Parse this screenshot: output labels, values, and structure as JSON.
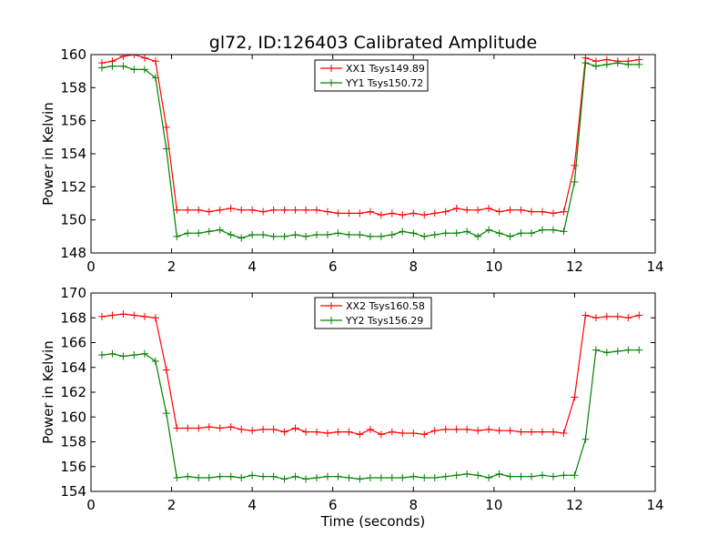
{
  "chart_data": [
    {
      "type": "line",
      "title": "gl72, ID:126403 Calibrated Amplitude",
      "xlabel": "",
      "ylabel": "Power in Kelvin",
      "xlim": [
        0,
        14
      ],
      "ylim": [
        148,
        160
      ],
      "xticks": [
        0,
        2,
        4,
        6,
        8,
        10,
        12,
        14
      ],
      "yticks": [
        148,
        150,
        152,
        154,
        156,
        158,
        160
      ],
      "grid": false,
      "legend": "top-center",
      "x": [
        0.27,
        0.53,
        0.8,
        1.07,
        1.33,
        1.6,
        1.87,
        2.13,
        2.4,
        2.67,
        2.93,
        3.2,
        3.47,
        3.73,
        4.0,
        4.27,
        4.53,
        4.8,
        5.07,
        5.33,
        5.6,
        5.87,
        6.13,
        6.4,
        6.67,
        6.93,
        7.2,
        7.47,
        7.73,
        8.0,
        8.27,
        8.53,
        8.8,
        9.07,
        9.33,
        9.6,
        9.87,
        10.13,
        10.4,
        10.67,
        10.93,
        11.2,
        11.47,
        11.73,
        12.0,
        12.27,
        12.53,
        12.8,
        13.07,
        13.33,
        13.6
      ],
      "series": [
        {
          "name": "XX1 Tsys149.89",
          "color": "#ff0000",
          "values": [
            159.5,
            159.6,
            159.9,
            160.0,
            159.8,
            159.6,
            155.6,
            150.6,
            150.6,
            150.6,
            150.5,
            150.6,
            150.7,
            150.6,
            150.6,
            150.5,
            150.6,
            150.6,
            150.6,
            150.6,
            150.6,
            150.5,
            150.4,
            150.4,
            150.4,
            150.5,
            150.3,
            150.4,
            150.3,
            150.4,
            150.3,
            150.4,
            150.5,
            150.7,
            150.6,
            150.6,
            150.7,
            150.5,
            150.6,
            150.6,
            150.5,
            150.5,
            150.4,
            150.5,
            153.3,
            159.8,
            159.6,
            159.7,
            159.6,
            159.6,
            159.7
          ]
        },
        {
          "name": "YY1 Tsys150.72",
          "color": "#008000",
          "values": [
            159.2,
            159.3,
            159.3,
            159.1,
            159.1,
            158.6,
            154.3,
            149.0,
            149.2,
            149.2,
            149.3,
            149.4,
            149.1,
            148.9,
            149.1,
            149.1,
            149.0,
            149.0,
            149.1,
            149.0,
            149.1,
            149.1,
            149.2,
            149.1,
            149.1,
            149.0,
            149.0,
            149.1,
            149.3,
            149.2,
            149.0,
            149.1,
            149.2,
            149.2,
            149.3,
            149.0,
            149.4,
            149.2,
            149.0,
            149.2,
            149.2,
            149.4,
            149.4,
            149.3,
            152.3,
            159.5,
            159.3,
            159.4,
            159.5,
            159.4,
            159.4
          ]
        }
      ]
    },
    {
      "type": "line",
      "title": "",
      "xlabel": "Time (seconds)",
      "ylabel": "Power in Kelvin",
      "xlim": [
        0,
        14
      ],
      "ylim": [
        154,
        170
      ],
      "xticks": [
        0,
        2,
        4,
        6,
        8,
        10,
        12,
        14
      ],
      "yticks": [
        154,
        156,
        158,
        160,
        162,
        164,
        166,
        168,
        170
      ],
      "grid": false,
      "legend": "top-center",
      "x": [
        0.27,
        0.53,
        0.8,
        1.07,
        1.33,
        1.6,
        1.87,
        2.13,
        2.4,
        2.67,
        2.93,
        3.2,
        3.47,
        3.73,
        4.0,
        4.27,
        4.53,
        4.8,
        5.07,
        5.33,
        5.6,
        5.87,
        6.13,
        6.4,
        6.67,
        6.93,
        7.2,
        7.47,
        7.73,
        8.0,
        8.27,
        8.53,
        8.8,
        9.07,
        9.33,
        9.6,
        9.87,
        10.13,
        10.4,
        10.67,
        10.93,
        11.2,
        11.47,
        11.73,
        12.0,
        12.27,
        12.53,
        12.8,
        13.07,
        13.33,
        13.6
      ],
      "series": [
        {
          "name": "XX2 Tsys160.58",
          "color": "#ff0000",
          "values": [
            168.1,
            168.2,
            168.3,
            168.2,
            168.1,
            168.0,
            163.8,
            159.1,
            159.1,
            159.1,
            159.2,
            159.1,
            159.2,
            159.0,
            158.9,
            159.0,
            159.0,
            158.8,
            159.1,
            158.8,
            158.8,
            158.7,
            158.8,
            158.8,
            158.6,
            159.0,
            158.6,
            158.8,
            158.7,
            158.7,
            158.6,
            158.9,
            159.0,
            159.0,
            159.0,
            158.9,
            159.0,
            158.9,
            158.9,
            158.8,
            158.8,
            158.8,
            158.8,
            158.7,
            161.6,
            168.2,
            168.0,
            168.1,
            168.1,
            168.0,
            168.2
          ]
        },
        {
          "name": "YY2 Tsys156.29",
          "color": "#008000",
          "values": [
            165.0,
            165.1,
            164.9,
            165.0,
            165.1,
            164.5,
            160.3,
            155.1,
            155.2,
            155.1,
            155.1,
            155.2,
            155.2,
            155.1,
            155.3,
            155.2,
            155.2,
            155.0,
            155.2,
            155.0,
            155.1,
            155.2,
            155.2,
            155.1,
            155.0,
            155.1,
            155.1,
            155.1,
            155.1,
            155.2,
            155.1,
            155.1,
            155.2,
            155.3,
            155.4,
            155.3,
            155.1,
            155.4,
            155.2,
            155.2,
            155.2,
            155.3,
            155.2,
            155.3,
            155.3,
            158.2,
            165.4,
            165.2,
            165.3,
            165.4,
            165.4
          ]
        }
      ]
    }
  ]
}
